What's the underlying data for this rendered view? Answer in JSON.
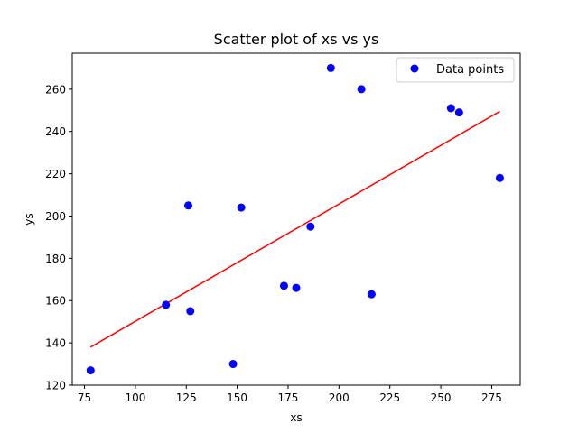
{
  "chart_data": {
    "type": "scatter",
    "title": "Scatter plot of xs vs ys",
    "xlabel": "xs",
    "ylabel": "ys",
    "xlim": [
      69,
      289
    ],
    "ylim": [
      120,
      277
    ],
    "xticks": [
      75,
      100,
      125,
      150,
      175,
      200,
      225,
      250,
      275
    ],
    "yticks": [
      120,
      140,
      160,
      180,
      200,
      220,
      240,
      260
    ],
    "grid": false,
    "legend": {
      "position": "top-right",
      "entries": [
        "Data points"
      ]
    },
    "series": [
      {
        "name": "Data points",
        "kind": "scatter",
        "color": "#0000ff",
        "x": [
          78,
          115,
          126,
          127,
          148,
          152,
          173,
          179,
          186,
          196,
          211,
          216,
          255,
          259,
          279
        ],
        "y": [
          127,
          158,
          205,
          155,
          130,
          204,
          167,
          166,
          195,
          270,
          260,
          163,
          251,
          249,
          218
        ]
      },
      {
        "kind": "line",
        "color": "#ff0000",
        "x": [
          78,
          279
        ],
        "y": [
          138,
          249.5
        ]
      }
    ]
  }
}
